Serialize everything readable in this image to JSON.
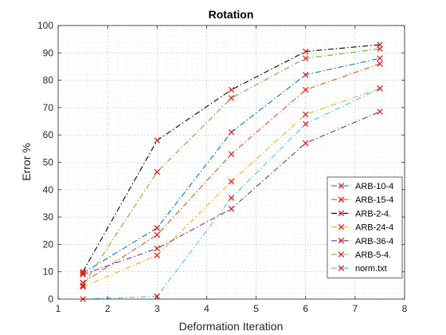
{
  "chart_data": {
    "type": "line",
    "title": "Rotation",
    "xlabel": "Deformation Iteration",
    "ylabel": "Error %",
    "xlim": [
      1,
      8
    ],
    "ylim": [
      0,
      100
    ],
    "xticks": [
      "1",
      "2",
      "3",
      "4",
      "5",
      "6",
      "7",
      "8"
    ],
    "yticks": [
      "0",
      "10",
      "20",
      "30",
      "40",
      "50",
      "60",
      "70",
      "80",
      "90",
      "100"
    ],
    "grid": "on (major and minor dotted)",
    "legend_position": "right, lower",
    "marker": "x",
    "x": [
      1.5,
      3,
      4.5,
      6,
      7.5
    ],
    "series": [
      {
        "name": "ARB-10-4",
        "color": "#0072BD",
        "dash": "dashdot",
        "values": [
          9.5,
          26,
          61,
          82,
          88
        ]
      },
      {
        "name": "ARB-15-4",
        "color": "#D95319",
        "dash": "dashdot",
        "values": [
          6,
          23.5,
          53,
          76.5,
          86
        ]
      },
      {
        "name": "ARB-2-4.",
        "color": "#000000",
        "dash": "dashdot",
        "values": [
          10,
          58,
          76.5,
          90.5,
          93
        ]
      },
      {
        "name": "ARB-24-4",
        "color": "#EDB120",
        "dash": "dashdot",
        "values": [
          4.5,
          16,
          43,
          67.5,
          77
        ]
      },
      {
        "name": "ARB-36-4",
        "color": "#7E2F8E",
        "dash": "dashdot",
        "values": [
          9,
          18.5,
          33,
          57,
          68.5
        ]
      },
      {
        "name": "ARB-5-4.",
        "color": "#77AC30",
        "dash": "dashdot",
        "values": [
          5,
          46.5,
          73.5,
          88,
          91.5
        ]
      },
      {
        "name": "norm.txt",
        "color": "#4DBEEE",
        "dash": "dashdot",
        "values": [
          0,
          1,
          37,
          64,
          77
        ]
      }
    ],
    "marker_color": "#E02020"
  }
}
